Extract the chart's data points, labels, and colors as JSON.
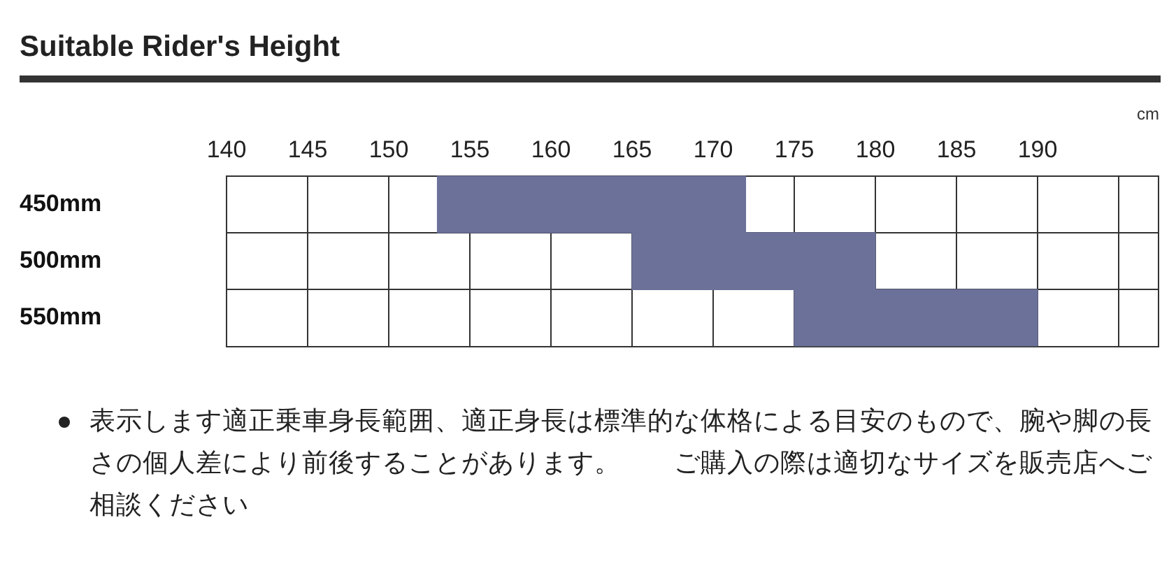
{
  "chart_data": {
    "type": "bar",
    "orientation": "horizontal",
    "title": "Suitable Rider's Height",
    "xlabel": "cm",
    "categories": [
      "450mm",
      "500mm",
      "550mm"
    ],
    "values": [
      19,
      15,
      15
    ],
    "base": [
      153,
      165,
      175
    ],
    "color": "#6b7199",
    "xlim": [
      140,
      197.5
    ],
    "xticks": [
      140,
      145,
      150,
      155,
      160,
      165,
      170,
      175,
      180,
      185,
      190,
      {
        "value": 195,
        "label": null
      }
    ],
    "grid": true,
    "legend": false,
    "annotations": [
      "表示します適正乗車身長範囲、適正身長は標準的な体格による目安のもので、腕や脚の長さの個人差により前後することがあります。　　ご購入の際は適切なサイズを販売店へご相談ください"
    ]
  }
}
